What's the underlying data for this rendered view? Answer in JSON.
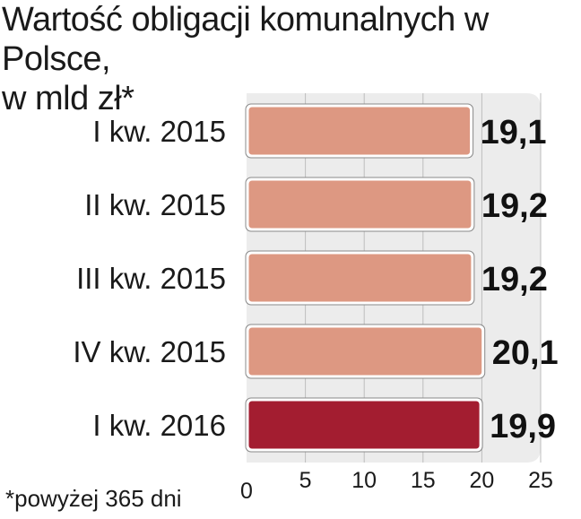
{
  "title_line1": "Wartość obligacji komunalnych w Polsce,",
  "title_line2": "w mld zł*",
  "footnote": "*powyżej 365 dni",
  "chart_data": {
    "type": "bar",
    "orientation": "horizontal",
    "categories": [
      "I kw. 2015",
      "II kw. 2015",
      "III kw. 2015",
      "IV kw. 2015",
      "I kw. 2016"
    ],
    "values": [
      19.1,
      19.2,
      19.2,
      20.1,
      19.9
    ],
    "value_labels": [
      "19,1",
      "19,2",
      "19,2",
      "20,1",
      "19,9"
    ],
    "xlim": [
      0,
      25
    ],
    "xticks": [
      0,
      5,
      10,
      15,
      20,
      25
    ],
    "grid": true,
    "colors": {
      "bar": "#dd9882",
      "bar_highlight": "#a31d30",
      "bar_outline": "#ffffff",
      "plot_background": "#ececec",
      "grid": "#bdbdbd"
    },
    "highlight_index": 4
  }
}
